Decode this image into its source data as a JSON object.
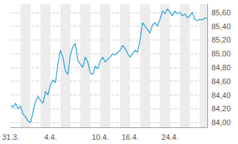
{
  "chart_data": {
    "type": "line",
    "color": "#1a9bd7",
    "grid": true,
    "categories": [
      "31.3.",
      null,
      null,
      null,
      null,
      null,
      null,
      null,
      null,
      null,
      null,
      null,
      null,
      null,
      null,
      null,
      "4.4.",
      null,
      null,
      null,
      null,
      null,
      null,
      null,
      null,
      null,
      null,
      null,
      null,
      null,
      null,
      null,
      null,
      null,
      null,
      null,
      "10.4.",
      null,
      null,
      null,
      null,
      null,
      null,
      null,
      null,
      null,
      null,
      null,
      "16.4.",
      null,
      null,
      null,
      null,
      null,
      null,
      null,
      null,
      null,
      null,
      null,
      null,
      null,
      null,
      null,
      "24.4.",
      null,
      null,
      null,
      null,
      null,
      null,
      null,
      null,
      null,
      null,
      null,
      null,
      null,
      null,
      null
    ],
    "values": [
      84.25,
      84.22,
      84.28,
      84.2,
      84.24,
      84.12,
      84.08,
      84.02,
      84.0,
      84.15,
      84.3,
      84.38,
      84.32,
      84.28,
      84.45,
      84.4,
      84.55,
      84.62,
      84.58,
      84.85,
      85.05,
      84.95,
      84.75,
      84.7,
      84.98,
      85.1,
      85.15,
      84.9,
      84.85,
      84.8,
      84.95,
      84.88,
      84.72,
      84.7,
      84.82,
      84.78,
      84.9,
      84.95,
      84.88,
      84.92,
      84.95,
      85.0,
      84.98,
      85.02,
      85.05,
      85.12,
      85.08,
      85.0,
      84.95,
      85.0,
      85.05,
      85.02,
      85.2,
      85.45,
      85.4,
      85.35,
      85.3,
      85.42,
      85.45,
      85.4,
      85.5,
      85.62,
      85.58,
      85.65,
      85.6,
      85.55,
      85.62,
      85.58,
      85.6,
      85.55,
      85.58,
      85.52,
      85.55,
      85.6,
      85.5,
      85.48,
      85.5,
      85.49,
      85.52,
      85.51
    ],
    "ylim": [
      83.93,
      85.72
    ],
    "yticks": [
      {
        "value": 84.0,
        "label": "84,00"
      },
      {
        "value": 84.2,
        "label": "84,20"
      },
      {
        "value": 84.4,
        "label": "84,40"
      },
      {
        "value": 84.6,
        "label": "84,60"
      },
      {
        "value": 84.8,
        "label": "84,80"
      },
      {
        "value": 85.0,
        "label": "85,00"
      },
      {
        "value": 85.2,
        "label": "85,20"
      },
      {
        "value": 85.4,
        "label": "85,40"
      },
      {
        "value": 85.6,
        "label": "85,60"
      }
    ]
  }
}
